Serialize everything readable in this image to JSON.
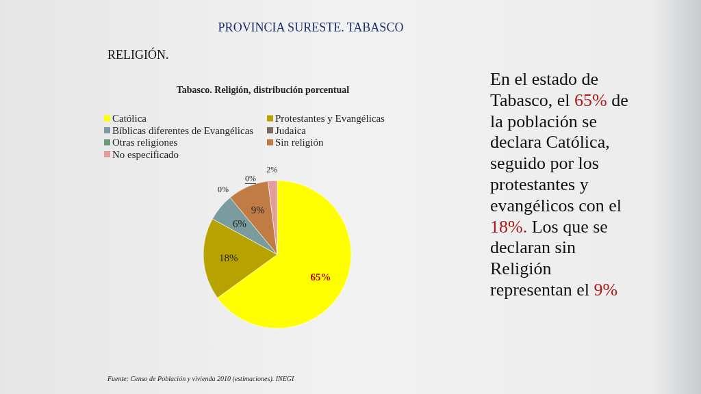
{
  "chart_data": {
    "type": "pie",
    "title": "Tabasco. Religión, distribución porcentual",
    "categories": [
      "Católica",
      "Protestantes y Evangélicas",
      "Bíblicas diferentes de Evangélicas",
      "Judaica",
      "Otras religiones",
      "Sin religión",
      "No especificado"
    ],
    "values": [
      65,
      18,
      6,
      0,
      0,
      9,
      2
    ],
    "colors": [
      "#ffff00",
      "#b8a200",
      "#7b9c9e",
      "#7a6a62",
      "#6f9a7a",
      "#c07c44",
      "#e39c9a"
    ],
    "value_labels": [
      "65%",
      "18%",
      "6%",
      "0%",
      "0%",
      "9%",
      "2%"
    ],
    "legend": "top",
    "annotations": [
      "PROVINCIA SURESTE. TABASCO",
      "RELIGIÓN.",
      "En el estado de Tabasco, el 65% de la población se declara Católica, seguido por los protestantes y evangélicos con el 18%. Los que se declaran sin Religión representan el 9%",
      "Fuente: Censo de Población y vivienda 2010 (estimaciones). INEGI"
    ]
  }
}
